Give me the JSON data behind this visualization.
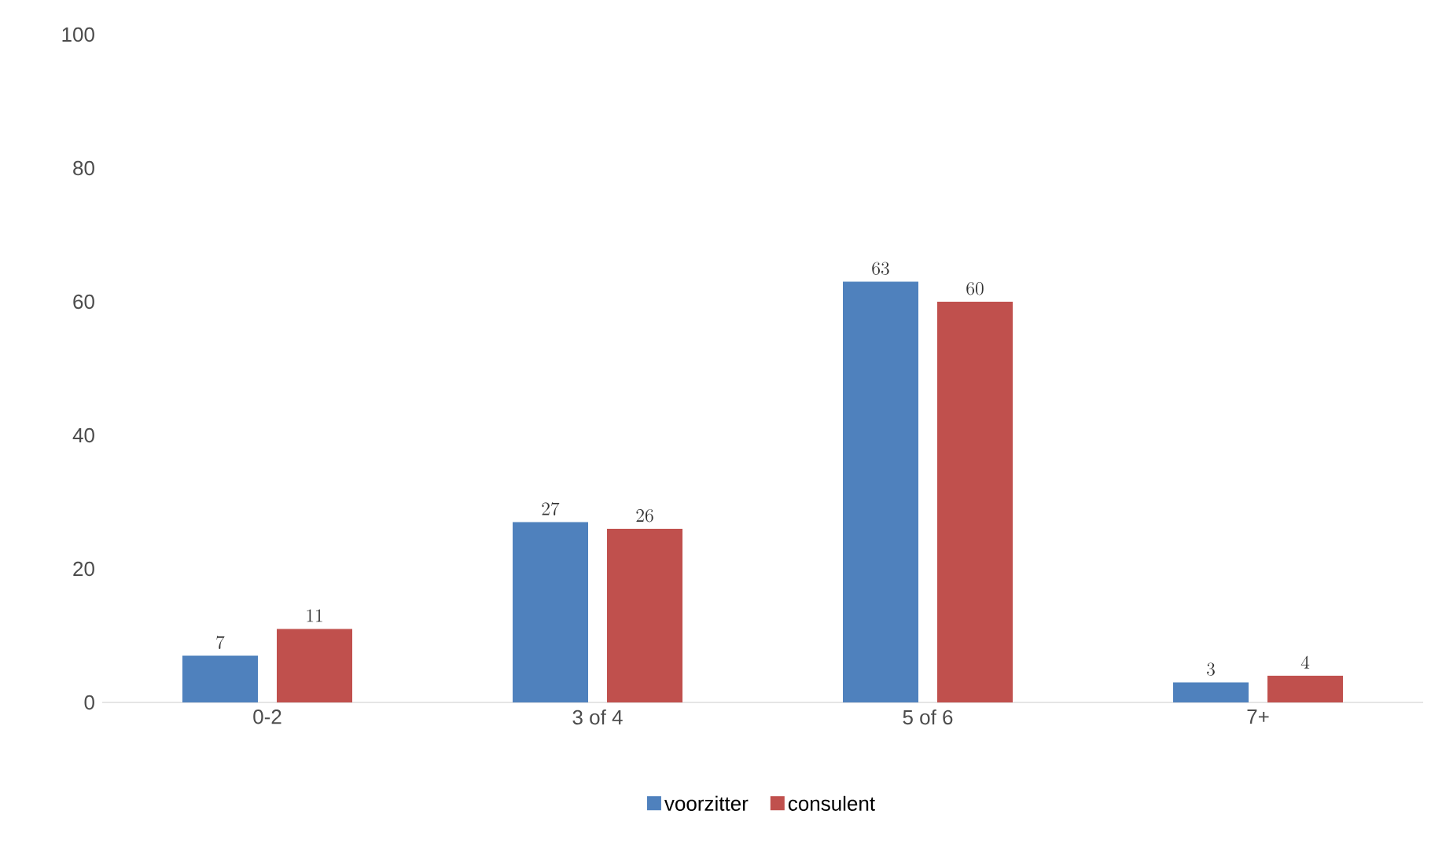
{
  "chart_data": {
    "type": "bar",
    "categories": [
      "0-2",
      "3 of 4",
      "5 of 6",
      "7+"
    ],
    "series": [
      {
        "name": "voorzitter",
        "color": "#4f81bd",
        "values": [
          7,
          27,
          63,
          3
        ]
      },
      {
        "name": "consulent",
        "color": "#c0504d",
        "values": [
          11,
          26,
          60,
          4
        ]
      }
    ],
    "ylim": [
      0,
      100
    ],
    "yticks": [
      0,
      20,
      40,
      60,
      80,
      100
    ],
    "data_labels": true,
    "legend": "bottom",
    "grid": false
  }
}
